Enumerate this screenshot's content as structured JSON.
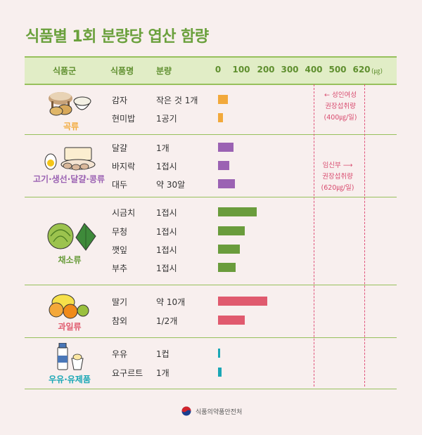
{
  "title": "식품별 1회 분량당 엽산 함량",
  "header": {
    "col_group": "식품군",
    "col_food": "식품명",
    "col_amount": "분량",
    "unit": "(㎍)"
  },
  "chart_data": {
    "type": "bar",
    "title": "식품별 1회 분량당 엽산 함량",
    "xlabel": "",
    "ylabel": "",
    "x_ticks": [
      "0",
      "100",
      "200",
      "300",
      "400",
      "500",
      "620"
    ],
    "unit": "(㎍)",
    "xlim": [
      0,
      620
    ],
    "groups": [
      {
        "name": "곡류",
        "color": "#f2a93b",
        "items": [
          {
            "food": "감자",
            "amount": "작은 것 1개",
            "value": 42
          },
          {
            "food": "현미밥",
            "amount": "1공기",
            "value": 20
          }
        ]
      },
      {
        "name": "고기·생선·달걀·콩류",
        "color": "#9b62b3",
        "items": [
          {
            "food": "달걀",
            "amount": "1개",
            "value": 65
          },
          {
            "food": "바지락",
            "amount": "1접시",
            "value": 48
          },
          {
            "food": "대두",
            "amount": "약 30알",
            "value": 72
          }
        ]
      },
      {
        "name": "채소류",
        "color": "#6a9c3c",
        "items": [
          {
            "food": "시금치",
            "amount": "1접시",
            "value": 165
          },
          {
            "food": "무청",
            "amount": "1접시",
            "value": 112
          },
          {
            "food": "깻잎",
            "amount": "1접시",
            "value": 92
          },
          {
            "food": "부추",
            "amount": "1접시",
            "value": 75
          }
        ]
      },
      {
        "name": "과일류",
        "color": "#e05a6e",
        "items": [
          {
            "food": "딸기",
            "amount": "약 10개",
            "value": 210
          },
          {
            "food": "참외",
            "amount": "1/2개",
            "value": 112
          }
        ]
      },
      {
        "name": "우유·유제품",
        "color": "#1aa7b5",
        "items": [
          {
            "food": "우유",
            "amount": "1컵",
            "value": 10
          },
          {
            "food": "요구르트",
            "amount": "1개",
            "value": 14
          }
        ]
      }
    ],
    "reference_lines": [
      {
        "value": 400,
        "label_lines": [
          "← 성인여성",
          "권장섭취량",
          "(400㎍/일)"
        ]
      },
      {
        "value": 620,
        "label_lines": [
          "임신부 ⟶",
          "권장섭취량",
          "(620㎍/일)"
        ]
      }
    ]
  },
  "footer": {
    "org": "식품의약품안전처"
  }
}
